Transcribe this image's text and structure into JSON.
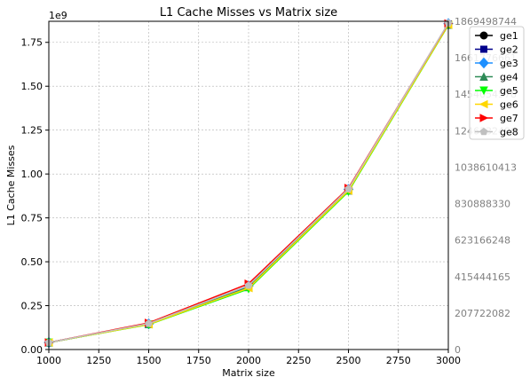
{
  "chart_data": {
    "type": "line",
    "title": "L1 Cache Misses vs Matrix size",
    "xlabel": "Matrix size",
    "ylabel": "L1 Cache Misses",
    "y_offset_label": "1e9",
    "xlim": [
      1000,
      3000
    ],
    "ylim": [
      0,
      1.87
    ],
    "grid": true,
    "legend_position": "right-outside-top",
    "x_ticks": [
      1000,
      1250,
      1500,
      1750,
      2000,
      2250,
      2500,
      2750,
      3000
    ],
    "y_ticks": [
      0.0,
      0.25,
      0.5,
      0.75,
      1.0,
      1.25,
      1.5,
      1.75
    ],
    "y_tick_labels": [
      "0.00",
      "0.25",
      "0.50",
      "0.75",
      "1.00",
      "1.25",
      "1.50",
      "1.75"
    ],
    "right_tick_labels": [
      "0",
      "207722082",
      "415444165",
      "623166248",
      "830888330",
      "1038610413",
      "1246332496",
      "1454054578",
      "1661776661",
      "1869498744"
    ],
    "x": [
      1000,
      1500,
      2000,
      2500,
      3000
    ],
    "series": [
      {
        "name": "ge1",
        "color": "#000000",
        "marker": "circle",
        "values": [
          0.04,
          0.145,
          0.36,
          0.91,
          1.855
        ]
      },
      {
        "name": "ge2",
        "color": "#00008b",
        "marker": "square",
        "values": [
          0.04,
          0.145,
          0.36,
          0.91,
          1.855
        ]
      },
      {
        "name": "ge3",
        "color": "#1e90ff",
        "marker": "diamond",
        "values": [
          0.04,
          0.146,
          0.362,
          0.912,
          1.857
        ]
      },
      {
        "name": "ge4",
        "color": "#2e8b57",
        "marker": "triangle-up",
        "values": [
          0.04,
          0.144,
          0.355,
          0.905,
          1.85
        ]
      },
      {
        "name": "ge5",
        "color": "#00ff00",
        "marker": "triangle-down",
        "values": [
          0.04,
          0.142,
          0.345,
          0.9,
          1.848
        ]
      },
      {
        "name": "ge6",
        "color": "#ffd700",
        "marker": "triangle-left",
        "values": [
          0.04,
          0.143,
          0.35,
          0.905,
          1.85
        ]
      },
      {
        "name": "ge7",
        "color": "#ff0000",
        "marker": "triangle-right",
        "values": [
          0.04,
          0.152,
          0.375,
          0.92,
          1.858
        ]
      },
      {
        "name": "ge8",
        "color": "#c0c0c0",
        "marker": "pentagon",
        "values": [
          0.04,
          0.148,
          0.365,
          0.915,
          1.86
        ]
      }
    ]
  }
}
